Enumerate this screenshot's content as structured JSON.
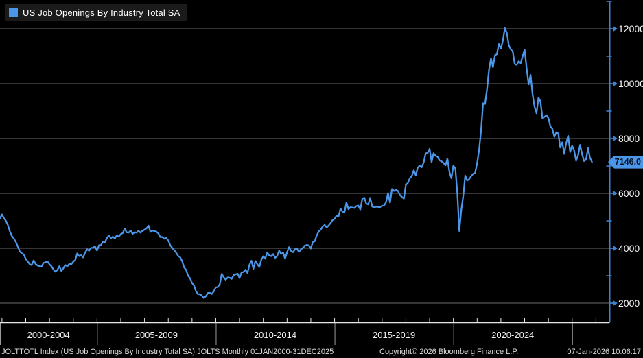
{
  "legend": {
    "label": "US Job Openings By Industry Total SA"
  },
  "colors": {
    "background": "#000000",
    "line": "#4c96e8",
    "axis_blue": "#3f80d0",
    "grid": "#6a6a6a",
    "axis_white": "#e8e8e8",
    "separator": "#9a9a9a",
    "tick_label": "#f5f5f5",
    "badge_bg": "#4c96e8",
    "badge_text": "#041226",
    "legend_bg": "#1b1b1b"
  },
  "y_axis": {
    "major_ticks": [
      2000,
      4000,
      6000,
      8000,
      10000,
      12000
    ],
    "minor_ticks": [
      3000,
      5000,
      7000,
      9000,
      11000,
      13000
    ],
    "last_value": 7146.0,
    "last_value_label": "7146.0"
  },
  "x_axis": {
    "periods": [
      {
        "label": "2000-2004",
        "mid_month": 24.5
      },
      {
        "label": "2005-2009",
        "mid_month": 79
      },
      {
        "label": "2010-2014",
        "mid_month": 139
      },
      {
        "label": "2015-2019",
        "mid_month": 199
      },
      {
        "label": "2020-2024",
        "mid_month": 259
      }
    ],
    "separator_months": [
      0,
      49,
      109,
      169,
      229,
      289
    ],
    "first_tick_month": 1,
    "last_tick_month": 301,
    "year_tick_step": 12
  },
  "status_bar": {
    "left": "JOLTTOTL Index (US Job Openings By Industry Total SA) JOLTS Monthly 01JAN2000-31DEC2025",
    "center": "Copyright© 2026 Bloomberg Finance L.P.",
    "right": "07-Jan-2026 10:06:17"
  },
  "chart_data": {
    "type": "line",
    "title": "US Job Openings By Industry Total SA",
    "ticker": "JOLTTOTL Index",
    "frequency": "Monthly",
    "start_period": "Dec-2000",
    "end_period": "Nov-2025",
    "grid": "horizontal",
    "legend_position": "top-left",
    "ylim": [
      1300,
      13050
    ],
    "y_tick_range": [
      2000,
      12000
    ],
    "last_value": 7146.0,
    "values": [
      5088,
      5234,
      5096,
      4999,
      4840,
      4615,
      4445,
      4354,
      4228,
      4061,
      3880,
      3818,
      3773,
      3611,
      3517,
      3421,
      3386,
      3559,
      3423,
      3371,
      3342,
      3336,
      3468,
      3493,
      3522,
      3412,
      3342,
      3225,
      3147,
      3213,
      3347,
      3170,
      3274,
      3388,
      3339,
      3430,
      3413,
      3512,
      3575,
      3810,
      3714,
      3745,
      3668,
      3848,
      3960,
      3911,
      4013,
      4018,
      4070,
      3920,
      4112,
      4115,
      4242,
      4223,
      4368,
      4471,
      4365,
      4422,
      4356,
      4470,
      4424,
      4516,
      4554,
      4717,
      4578,
      4572,
      4647,
      4524,
      4585,
      4568,
      4635,
      4569,
      4636,
      4679,
      4724,
      4825,
      4595,
      4646,
      4625,
      4604,
      4539,
      4409,
      4411,
      4348,
      4378,
      4284,
      4107,
      4013,
      3929,
      3840,
      3718,
      3670,
      3532,
      3302,
      3209,
      3003,
      2906,
      2737,
      2643,
      2432,
      2325,
      2326,
      2270,
      2185,
      2254,
      2371,
      2375,
      2335,
      2434,
      2576,
      2588,
      2685,
      3068,
      2944,
      2855,
      2938,
      2924,
      2883,
      3023,
      3050,
      3074,
      2917,
      3117,
      3133,
      3217,
      3099,
      3396,
      3546,
      3249,
      3534,
      3420,
      3316,
      3584,
      3706,
      3620,
      3850,
      3734,
      3712,
      3788,
      3653,
      3716,
      3912,
      3790,
      3848,
      3620,
      3852,
      4043,
      3899,
      3856,
      3960,
      3981,
      3869,
      3961,
      4015,
      4095,
      4118,
      4103,
      3990,
      4222,
      4257,
      4469,
      4616,
      4677,
      4797,
      4852,
      4757,
      4830,
      4920,
      5028,
      5068,
      5195,
      5160,
      5448,
      5333,
      5319,
      5669,
      5423,
      5492,
      5486,
      5467,
      5539,
      5556,
      5414,
      5801,
      5845,
      5626,
      5598,
      5837,
      5519,
      5486,
      5517,
      5505,
      5501,
      5549,
      5557,
      5680,
      6011,
      5662,
      6163,
      6090,
      6140,
      6090,
      5940,
      5871,
      5811,
      6313,
      6379,
      6550,
      6633,
      6840,
      6662,
      6939,
      7014,
      6953,
      7131,
      7459,
      7479,
      7625,
      7142,
      7465,
      7372,
      7337,
      7209,
      7170,
      7113,
      7024,
      7267,
      6787,
      6552,
      7012,
      6907,
      6011,
      4630,
      5395,
      5911,
      6648,
      6469,
      6522,
      6632,
      6716,
      6752,
      7099,
      7590,
      8303,
      9286,
      9262,
      9800,
      10500,
      10925,
      10602,
      11033,
      11075,
      11448,
      11283,
      11566,
      12027,
      11855,
      11400,
      11254,
      11170,
      10717,
      10687,
      10817,
      10746,
      11000,
      11234,
      10563,
      9974,
      10320,
      9616,
      9165,
      8920,
      9497,
      9350,
      8733,
      8790,
      8850,
      8748,
      8445,
      8355,
      8059,
      8230,
      8184,
      7673,
      7861,
      7440,
      7839,
      8098,
      7508,
      7740,
      7568,
      7192,
      7395,
      7769,
      7437,
      7181,
      7227,
      7650,
      7300,
      7146
    ]
  }
}
